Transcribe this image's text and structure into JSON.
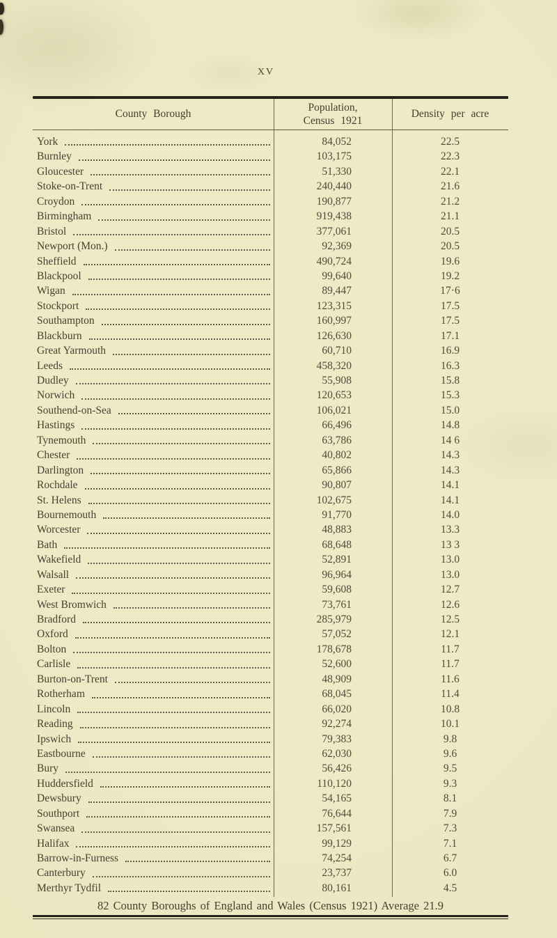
{
  "page": {
    "number_label": "XV"
  },
  "colors": {
    "paper": "#eae7c3",
    "ink": "#474131",
    "rule_dark": "#26231b",
    "rule_thin": "#5c574a"
  },
  "table": {
    "headers": {
      "borough": "County Borough",
      "population_line1": "Population,",
      "population_line2": "Census 1921",
      "density": "Density per acre"
    },
    "rows": [
      {
        "name": "York",
        "population": "84,052",
        "density": "22.5"
      },
      {
        "name": "Burnley",
        "population": "103,175",
        "density": "22.3"
      },
      {
        "name": "Gloucester",
        "population": "51,330",
        "density": "22.1"
      },
      {
        "name": "Stoke-on-Trent",
        "population": "240,440",
        "density": "21.6"
      },
      {
        "name": "Croydon",
        "population": "190,877",
        "density": "21.2"
      },
      {
        "name": "Birmingham",
        "population": "919,438",
        "density": "21.1"
      },
      {
        "name": "Bristol",
        "population": "377,061",
        "density": "20.5"
      },
      {
        "name": "Newport (Mon.)",
        "population": "92,369",
        "density": "20.5"
      },
      {
        "name": "Sheffield",
        "population": "490,724",
        "density": "19.6"
      },
      {
        "name": "Blackpool",
        "population": "99,640",
        "density": "19.2"
      },
      {
        "name": "Wigan",
        "population": "89,447",
        "density": "17·6"
      },
      {
        "name": "Stockport",
        "population": "123,315",
        "density": "17.5"
      },
      {
        "name": "Southampton",
        "population": "160,997",
        "density": "17.5"
      },
      {
        "name": "Blackburn",
        "population": "126,630",
        "density": "17.1"
      },
      {
        "name": "Great Yarmouth",
        "population": "60,710",
        "density": "16.9"
      },
      {
        "name": "Leeds",
        "population": "458,320",
        "density": "16.3"
      },
      {
        "name": "Dudley",
        "population": "55,908",
        "density": "15.8"
      },
      {
        "name": "Norwich",
        "population": "120,653",
        "density": "15.3"
      },
      {
        "name": "Southend-on-Sea",
        "population": "106,021",
        "density": "15.0"
      },
      {
        "name": "Hastings",
        "population": "66,496",
        "density": "14.8"
      },
      {
        "name": "Tynemouth",
        "population": "63,786",
        "density": "14 6"
      },
      {
        "name": "Chester",
        "population": "40,802",
        "density": "14.3"
      },
      {
        "name": "Darlington",
        "population": "65,866",
        "density": "14.3"
      },
      {
        "name": "Rochdale",
        "population": "90,807",
        "density": "14.1"
      },
      {
        "name": "St. Helens",
        "population": "102,675",
        "density": "14.1"
      },
      {
        "name": "Bournemouth",
        "population": "91,770",
        "density": "14.0"
      },
      {
        "name": "Worcester",
        "population": "48,883",
        "density": "13.3"
      },
      {
        "name": "Bath",
        "population": "68,648",
        "density": "13 3"
      },
      {
        "name": "Wakefield",
        "population": "52,891",
        "density": "13.0"
      },
      {
        "name": "Walsall",
        "population": "96,964",
        "density": "13.0"
      },
      {
        "name": "Exeter",
        "population": "59,608",
        "density": "12.7"
      },
      {
        "name": "West Bromwich",
        "population": "73,761",
        "density": "12.6"
      },
      {
        "name": "Bradford",
        "population": "285,979",
        "density": "12.5"
      },
      {
        "name": "Oxford",
        "population": "57,052",
        "density": "12.1"
      },
      {
        "name": "Bolton",
        "population": "178,678",
        "density": "11.7"
      },
      {
        "name": "Carlisle",
        "population": "52,600",
        "density": "11.7"
      },
      {
        "name": "Burton-on-Trent",
        "population": "48,909",
        "density": "11.6"
      },
      {
        "name": "Rotherham",
        "population": "68,045",
        "density": "11.4"
      },
      {
        "name": "Lincoln",
        "population": "66,020",
        "density": "10.8"
      },
      {
        "name": "Reading",
        "population": "92,274",
        "density": "10.1"
      },
      {
        "name": "Ipswich",
        "population": "79,383",
        "density": "9.8"
      },
      {
        "name": "Eastbourne",
        "population": "62,030",
        "density": "9.6"
      },
      {
        "name": "Bury",
        "population": "56,426",
        "density": "9.5"
      },
      {
        "name": "Huddersfield",
        "population": "110,120",
        "density": "9.3"
      },
      {
        "name": "Dewsbury",
        "population": "54,165",
        "density": "8.1"
      },
      {
        "name": "Southport",
        "population": "76,644",
        "density": "7.9"
      },
      {
        "name": "Swansea",
        "population": "157,561",
        "density": "7.3"
      },
      {
        "name": "Halifax",
        "population": "99,129",
        "density": "7.1"
      },
      {
        "name": "Barrow-in-Furness",
        "population": "74,254",
        "density": "6.7"
      },
      {
        "name": "Canterbury",
        "population": "23,737",
        "density": "6.0"
      },
      {
        "name": "Merthyr Tydfil",
        "population": "80,161",
        "density": "4.5"
      }
    ],
    "footer": "82 County Boroughs of England and Wales (Census 1921) Average 21.9"
  }
}
